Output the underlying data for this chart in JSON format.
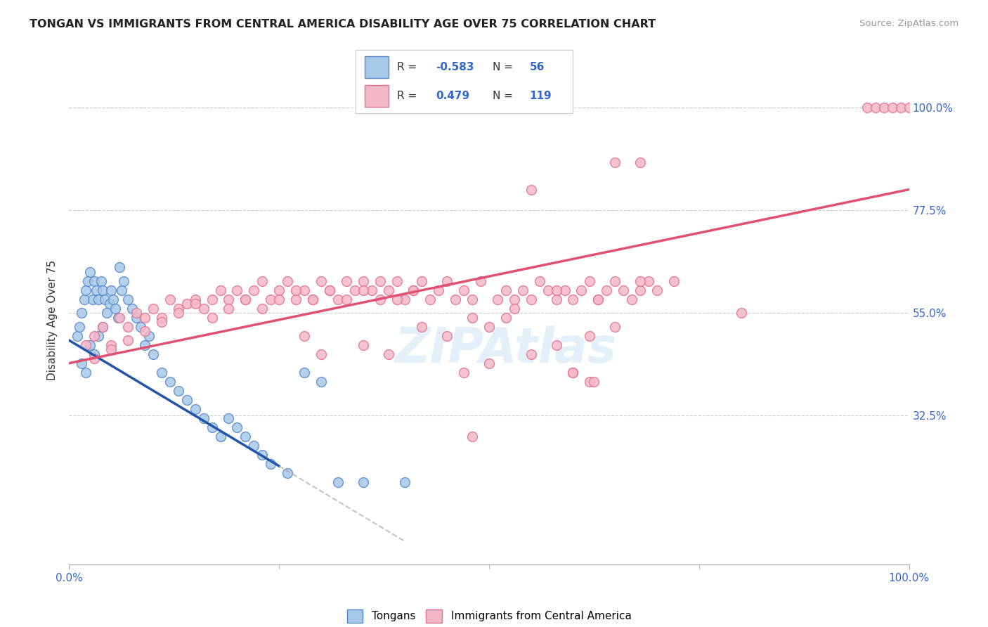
{
  "title": "TONGAN VS IMMIGRANTS FROM CENTRAL AMERICA DISABILITY AGE OVER 75 CORRELATION CHART",
  "source": "Source: ZipAtlas.com",
  "ylabel": "Disability Age Over 75",
  "xlim": [
    0,
    100
  ],
  "ylim": [
    0,
    107
  ],
  "ytick_values": [
    32.5,
    55.0,
    77.5,
    100.0
  ],
  "ytick_labels": [
    "32.5%",
    "55.0%",
    "77.5%",
    "100.0%"
  ],
  "tongan_color": "#a8c8e8",
  "tongan_edge": "#5588cc",
  "tongan_trend_solid": "#2255aa",
  "central_america_color": "#f5b8c8",
  "central_america_edge": "#e07090",
  "central_america_trend": "#e05070",
  "background_color": "#ffffff",
  "grid_color": "#cccccc",
  "R_tongan": -0.583,
  "N_tongan": 56,
  "R_central": 0.479,
  "N_central": 119,
  "tongan_x": [
    1.0,
    1.2,
    1.5,
    1.8,
    2.0,
    2.2,
    2.5,
    2.8,
    3.0,
    3.2,
    3.5,
    3.8,
    4.0,
    4.2,
    4.5,
    4.8,
    5.0,
    5.2,
    5.5,
    5.8,
    6.0,
    6.2,
    6.5,
    7.0,
    7.5,
    8.0,
    8.5,
    9.0,
    9.5,
    10.0,
    11.0,
    12.0,
    13.0,
    14.0,
    15.0,
    16.0,
    17.0,
    18.0,
    19.0,
    20.0,
    21.0,
    22.0,
    23.0,
    24.0,
    26.0,
    28.0,
    30.0,
    32.0,
    35.0,
    40.0,
    1.5,
    2.0,
    2.5,
    3.0,
    3.5,
    4.0
  ],
  "tongan_y": [
    50,
    52,
    55,
    58,
    60,
    62,
    64,
    58,
    62,
    60,
    58,
    62,
    60,
    58,
    55,
    57,
    60,
    58,
    56,
    54,
    65,
    60,
    62,
    58,
    56,
    54,
    52,
    48,
    50,
    46,
    42,
    40,
    38,
    36,
    34,
    32,
    30,
    28,
    32,
    30,
    28,
    26,
    24,
    22,
    20,
    42,
    40,
    18,
    18,
    18,
    44,
    42,
    48,
    46,
    50,
    52
  ],
  "central_x": [
    2.0,
    3.0,
    4.0,
    5.0,
    6.0,
    7.0,
    8.0,
    9.0,
    10.0,
    11.0,
    12.0,
    13.0,
    14.0,
    15.0,
    16.0,
    17.0,
    18.0,
    19.0,
    20.0,
    21.0,
    22.0,
    23.0,
    24.0,
    25.0,
    26.0,
    27.0,
    28.0,
    29.0,
    30.0,
    31.0,
    32.0,
    33.0,
    34.0,
    35.0,
    36.0,
    37.0,
    38.0,
    39.0,
    40.0,
    41.0,
    42.0,
    43.0,
    44.0,
    45.0,
    46.0,
    47.0,
    48.0,
    49.0,
    50.0,
    51.0,
    52.0,
    53.0,
    54.0,
    55.0,
    56.0,
    57.0,
    58.0,
    59.0,
    60.0,
    61.0,
    62.0,
    63.0,
    64.0,
    65.0,
    66.0,
    67.0,
    68.0,
    69.0,
    70.0,
    72.0,
    3.0,
    5.0,
    7.0,
    9.0,
    11.0,
    13.0,
    15.0,
    17.0,
    19.0,
    21.0,
    23.0,
    25.0,
    27.0,
    29.0,
    31.0,
    33.0,
    35.0,
    37.0,
    39.0,
    41.0,
    47.0,
    50.0,
    55.0,
    58.0,
    62.0,
    65.0,
    30.0,
    45.0,
    52.0,
    60.0,
    28.0,
    35.0,
    42.0,
    48.0,
    38.0,
    53.0,
    58.0,
    63.0,
    68.0
  ],
  "central_y": [
    48,
    50,
    52,
    48,
    54,
    52,
    55,
    54,
    56,
    54,
    58,
    56,
    57,
    58,
    56,
    58,
    60,
    58,
    60,
    58,
    60,
    62,
    58,
    60,
    62,
    58,
    60,
    58,
    62,
    60,
    58,
    62,
    60,
    62,
    60,
    58,
    60,
    62,
    58,
    60,
    62,
    58,
    60,
    62,
    58,
    60,
    58,
    62,
    52,
    58,
    60,
    58,
    60,
    58,
    62,
    60,
    58,
    60,
    58,
    60,
    62,
    58,
    60,
    62,
    60,
    58,
    60,
    62,
    60,
    62,
    45,
    47,
    49,
    51,
    53,
    55,
    57,
    54,
    56,
    58,
    56,
    58,
    60,
    58,
    60,
    58,
    60,
    62,
    58,
    60,
    42,
    44,
    46,
    48,
    50,
    52,
    46,
    50,
    54,
    42,
    50,
    48,
    52,
    54,
    46,
    56,
    60,
    58,
    62
  ],
  "central_outlier_x": [
    48.0,
    60.0,
    62.0,
    62.5,
    80.0
  ],
  "central_outlier_y": [
    28.0,
    42.0,
    40.0,
    40.0,
    55.0
  ],
  "central_high_x": [
    55.0,
    65.0,
    68.0,
    95.0,
    96.0,
    97.0,
    98.0,
    99.0,
    100.0
  ],
  "central_high_y": [
    82.0,
    88.0,
    88.0,
    100.0,
    100.0,
    100.0,
    100.0,
    100.0,
    100.0
  ],
  "blue_line_x0": 0.0,
  "blue_line_y0": 49.0,
  "blue_line_slope": -1.1,
  "blue_line_solid_end": 25.0,
  "blue_line_dash_end": 40.0,
  "pink_line_x0": 0.0,
  "pink_line_y0": 44.0,
  "pink_line_x1": 100.0,
  "pink_line_y1": 82.0
}
